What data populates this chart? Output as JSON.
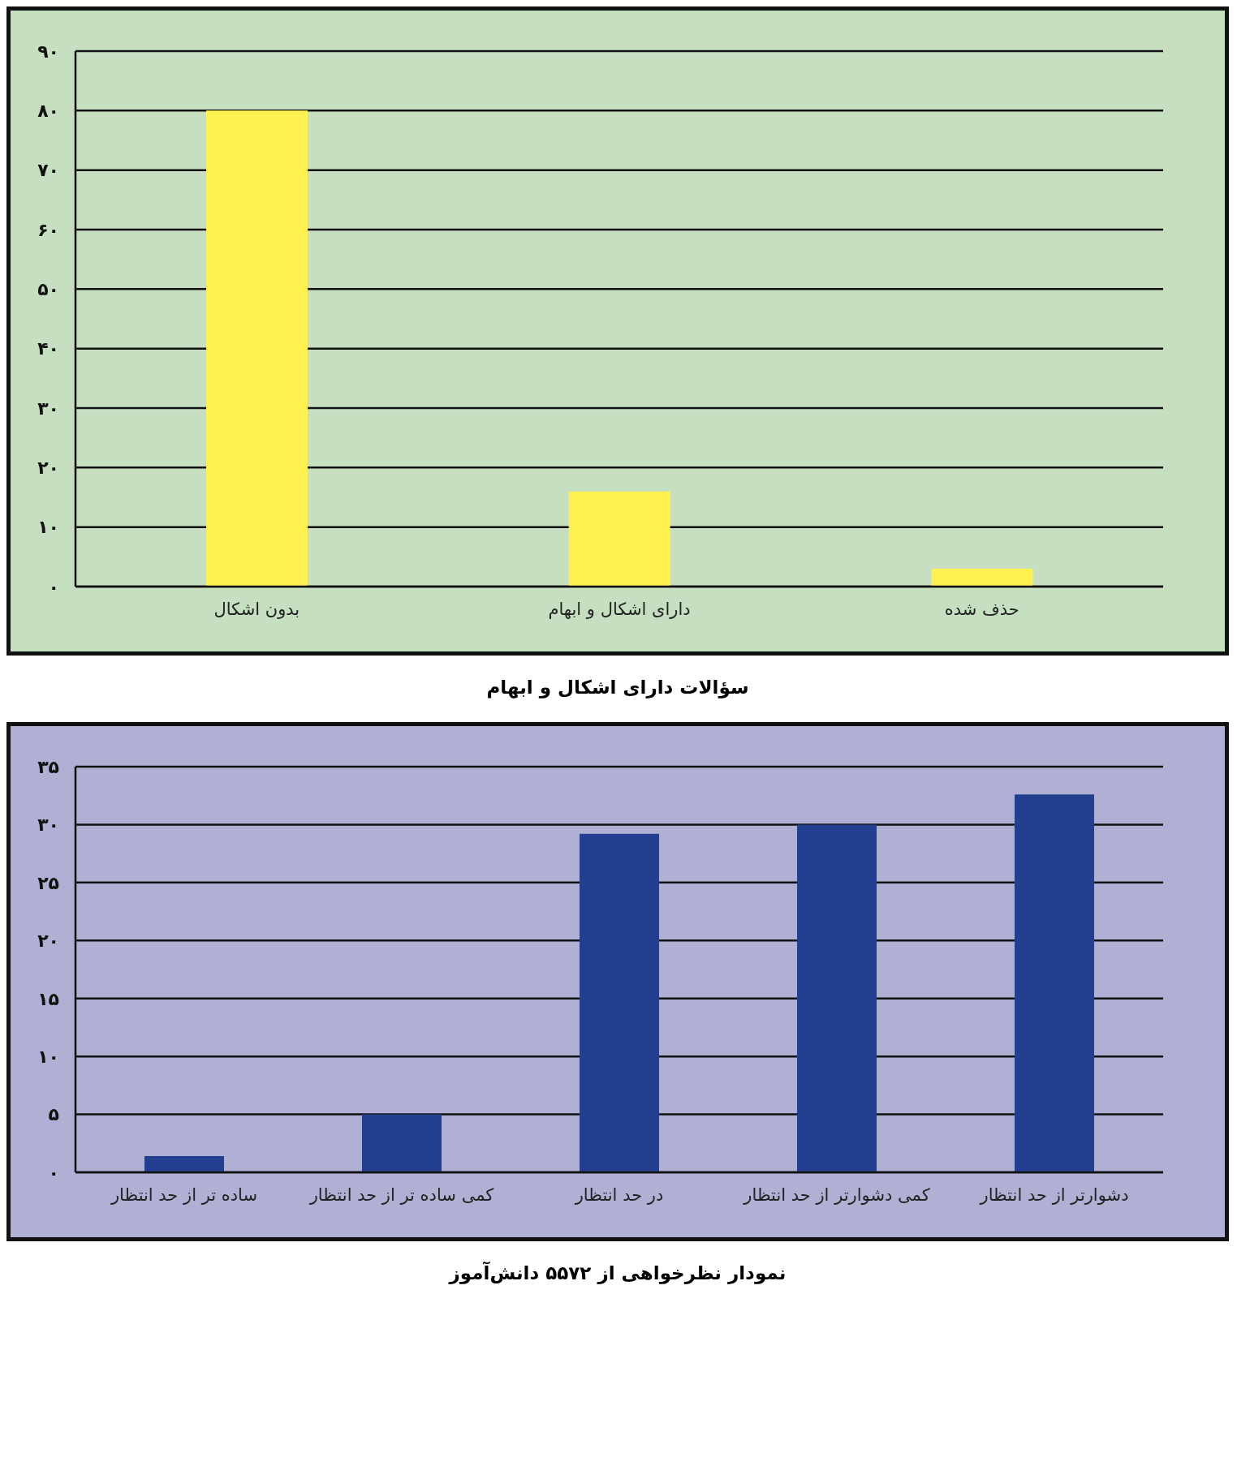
{
  "chart_data": [
    {
      "type": "bar",
      "title": "سؤالات دارای اشکال و ابهام",
      "categories": [
        "بدون اشکال",
        "دارای اشکال و ابهام",
        "حذف شده"
      ],
      "values": [
        80,
        16,
        3
      ],
      "color": "#fff250",
      "ylim": [
        0,
        90
      ],
      "yticks": [
        {
          "value": 0,
          "label": "۰"
        },
        {
          "value": 10,
          "label": "۱۰"
        },
        {
          "value": 20,
          "label": "۲۰"
        },
        {
          "value": 30,
          "label": "۳۰"
        },
        {
          "value": 40,
          "label": "۴۰"
        },
        {
          "value": 50,
          "label": "۵۰"
        },
        {
          "value": 60,
          "label": "۶۰"
        },
        {
          "value": 70,
          "label": "۷۰"
        },
        {
          "value": 80,
          "label": "۸۰"
        },
        {
          "value": 90,
          "label": "۹۰"
        }
      ],
      "grid": "y"
    },
    {
      "type": "bar",
      "title": "نمودار نظرخواهی از ۵۵۷۲ دانش‌آموز",
      "categories": [
        "ساده تر از حد انتظار",
        "کمی ساده تر از حد انتظار",
        "در حد انتظار",
        "کمی دشوارتر از حد انتظار",
        "دشوارتر از حد انتظار"
      ],
      "values": [
        1.4,
        5,
        29.2,
        30,
        32.6
      ],
      "color": "#233f8f",
      "ylim": [
        0,
        35
      ],
      "yticks": [
        {
          "value": 0,
          "label": "۰"
        },
        {
          "value": 5,
          "label": "۵"
        },
        {
          "value": 10,
          "label": "۱۰"
        },
        {
          "value": 15,
          "label": "۱۵"
        },
        {
          "value": 20,
          "label": "۲۰"
        },
        {
          "value": 25,
          "label": "۲۵"
        },
        {
          "value": 30,
          "label": "۳۰"
        },
        {
          "value": 35,
          "label": "۳۵"
        }
      ],
      "grid": "y"
    }
  ]
}
